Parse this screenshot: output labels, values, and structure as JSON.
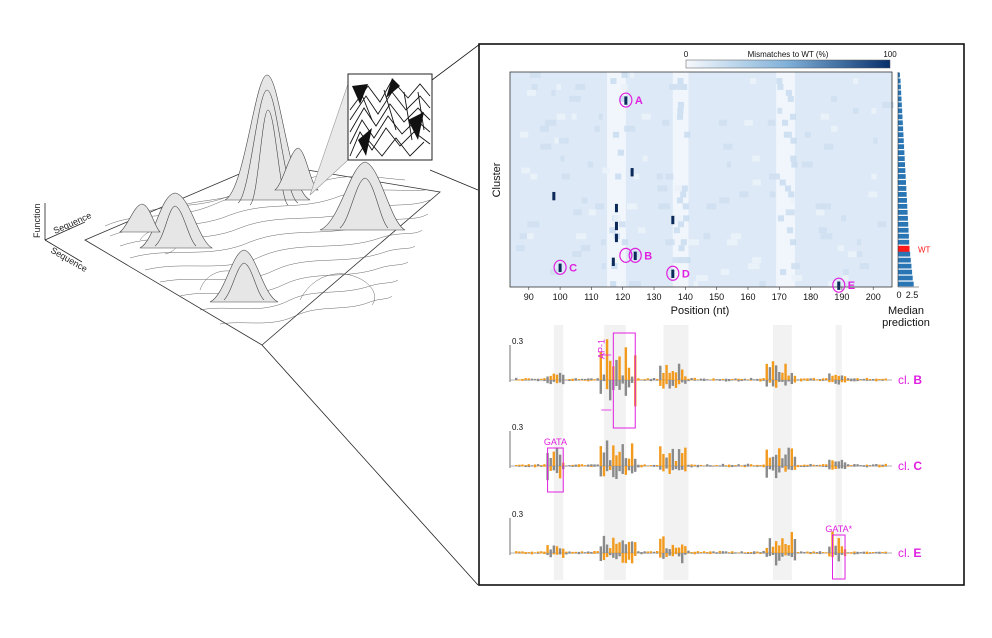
{
  "landscape": {
    "function_label": "Function",
    "seq_label_a": "Sequence",
    "seq_label_b": "Sequence"
  },
  "colorbar": {
    "title": "Mismatches to WT (%)",
    "min_label": "0",
    "max_label": "100",
    "min": 0,
    "max": 100
  },
  "heatmap": {
    "y_label": "Cluster",
    "x_label": "Position (nt)",
    "x_range": [
      84,
      206
    ],
    "x_ticks": [
      90,
      100,
      110,
      120,
      130,
      140,
      150,
      160,
      170,
      180,
      190,
      200
    ],
    "n_rows": 36,
    "light_bands": [
      [
        115,
        121
      ],
      [
        136,
        141
      ],
      [
        169,
        175
      ]
    ],
    "dark_cells": [
      {
        "row": 5,
        "pos": 121
      },
      {
        "row": 17,
        "pos": 123
      },
      {
        "row": 21,
        "pos": 98
      },
      {
        "row": 23,
        "pos": 118
      },
      {
        "row": 25,
        "pos": 136
      },
      {
        "row": 26,
        "pos": 118
      },
      {
        "row": 28,
        "pos": 118
      },
      {
        "row": 31,
        "pos": 124
      },
      {
        "row": 32,
        "pos": 117
      },
      {
        "row": 33,
        "pos": 100
      },
      {
        "row": 34,
        "pos": 136
      },
      {
        "row": 36,
        "pos": 189
      }
    ],
    "annotations": [
      {
        "label": "A",
        "pos": 121,
        "row": 5,
        "side": "right"
      },
      {
        "label": "B",
        "pos": 124,
        "row": 31,
        "side": "right"
      },
      {
        "label": "C",
        "pos": 100,
        "row": 33,
        "side": "right"
      },
      {
        "label": "D",
        "pos": 136,
        "row": 34,
        "side": "right"
      },
      {
        "label": "E",
        "pos": 189,
        "row": 36,
        "side": "right"
      }
    ]
  },
  "median_panel": {
    "x_ticks": [
      "0",
      "2.5"
    ],
    "x_max": 2.5,
    "title_line1": "Median",
    "title_line2": "prediction",
    "wt_label": "WT",
    "wt_row": 30,
    "values": [
      0.3,
      0.4,
      0.45,
      0.5,
      0.55,
      0.6,
      0.65,
      0.7,
      0.75,
      0.8,
      0.85,
      0.9,
      0.95,
      1.0,
      1.05,
      1.1,
      1.15,
      1.2,
      1.25,
      1.3,
      1.35,
      1.4,
      1.45,
      1.5,
      1.55,
      1.6,
      1.65,
      1.7,
      1.75,
      1.8,
      1.9,
      2.0,
      2.1,
      2.2,
      2.3,
      2.45
    ]
  },
  "logos": {
    "scale_label": "0.3",
    "tracks": [
      {
        "cluster_prefix": "cl.",
        "cluster": "B",
        "box_label": "AP-1",
        "box_range": [
          117,
          124
        ]
      },
      {
        "cluster_prefix": "cl.",
        "cluster": "C",
        "box_label": "GATA",
        "box_range": [
          96,
          101
        ]
      },
      {
        "cluster_prefix": "cl.",
        "cluster": "E",
        "box_label": "GATA*",
        "box_range": [
          187,
          191
        ]
      }
    ],
    "shaded_bands": [
      [
        98,
        101
      ],
      [
        114,
        121
      ],
      [
        133,
        141
      ],
      [
        168,
        174
      ],
      [
        188,
        190
      ]
    ]
  },
  "colors": {
    "magenta": "#e020e0",
    "heat_base": "#dde9f6",
    "heat_light": "#f1f6fc",
    "heat_dark": "#0b2a5a",
    "bar_blue": "#2a76b4",
    "wt_red": "#ff1a1a",
    "logo_orange": "#f29a1d",
    "logo_gray": "#8a8a8a",
    "band_gray": "#ececec"
  }
}
